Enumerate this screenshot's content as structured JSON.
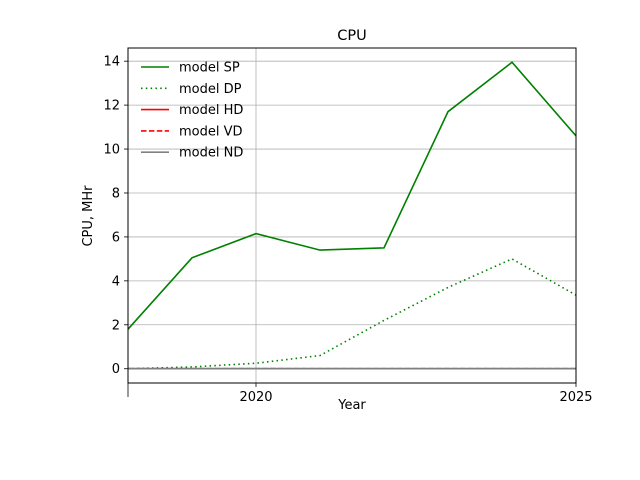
{
  "chart_data": {
    "type": "line",
    "title": "CPU",
    "xlabel": "Year",
    "ylabel": "CPU, MHr",
    "xlim": [
      2018,
      2025
    ],
    "ylim": [
      -0.65,
      14.6
    ],
    "x": [
      2018,
      2019,
      2020,
      2021,
      2022,
      2023,
      2024,
      2025
    ],
    "x_ticks": [
      2020,
      2025
    ],
    "x_tick_labels": [
      "2020",
      "2025"
    ],
    "y_ticks": [
      0,
      2,
      4,
      6,
      8,
      10,
      12,
      14
    ],
    "y_tick_labels": [
      "0",
      "2",
      "4",
      "6",
      "8",
      "10",
      "12",
      "14"
    ],
    "grid": true,
    "legend_position": "top-left",
    "series": [
      {
        "name": "model SP",
        "color": "#008000",
        "style": "solid",
        "values": [
          1.8,
          5.05,
          6.15,
          5.4,
          5.5,
          11.7,
          13.95,
          10.6
        ]
      },
      {
        "name": "model DP",
        "color": "#008000",
        "style": "dotted",
        "values": [
          0.0,
          0.08,
          0.25,
          0.6,
          2.2,
          3.7,
          5.0,
          3.35
        ]
      },
      {
        "name": "model HD",
        "color": "#ff0000",
        "style": "solid",
        "values": [
          0,
          0,
          0,
          0,
          0,
          0,
          0,
          0
        ]
      },
      {
        "name": "model VD",
        "color": "#ff0000",
        "style": "dashed",
        "values": [
          0,
          0,
          0,
          0,
          0,
          0,
          0,
          0
        ]
      },
      {
        "name": "model ND",
        "color": "#808080",
        "style": "solid",
        "values": [
          0,
          0,
          0,
          0,
          0,
          0,
          0,
          0
        ]
      }
    ]
  }
}
